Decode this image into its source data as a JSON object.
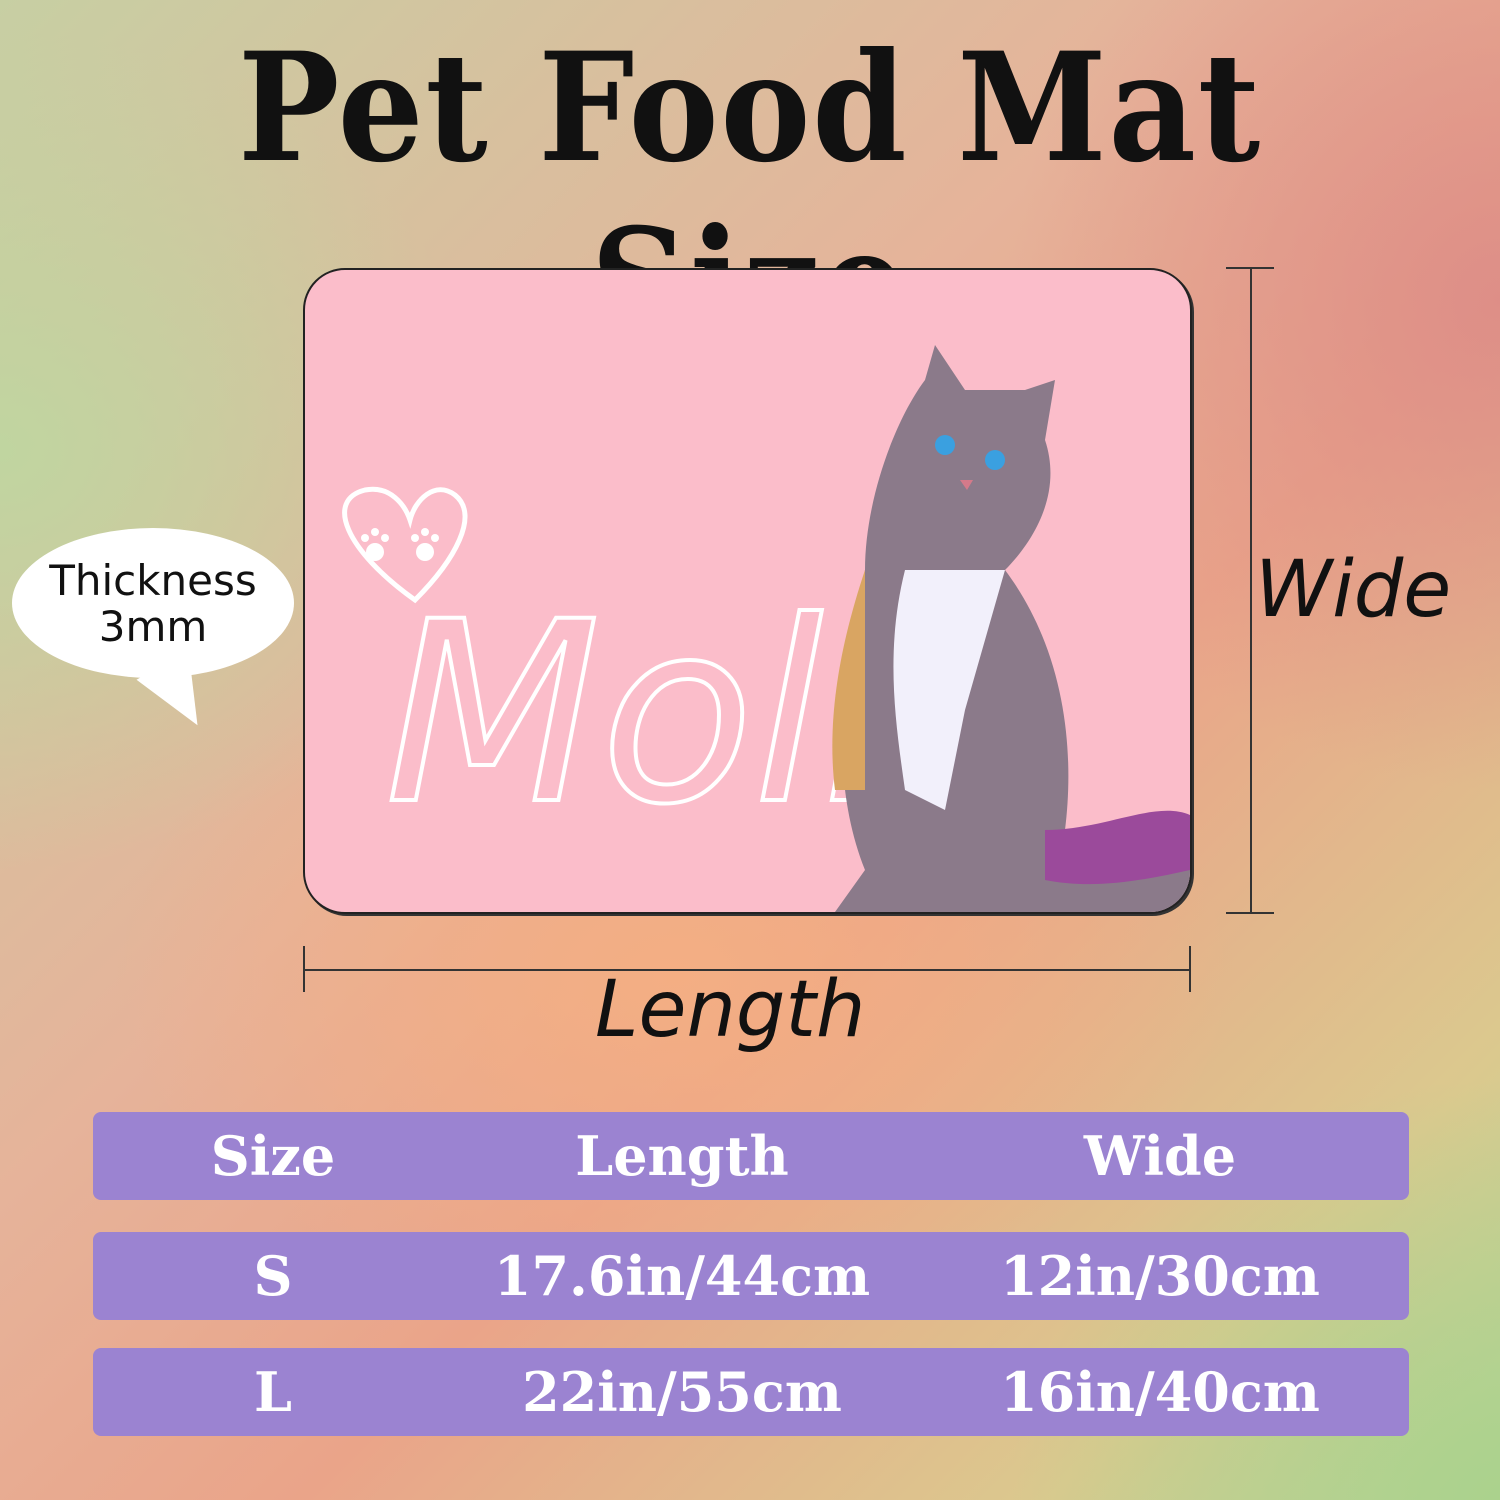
{
  "title": "Pet Food Mat Size",
  "mat": {
    "name": "Molly",
    "background_color": "#fbbdca"
  },
  "thickness_bubble": {
    "line1": "Thickness",
    "line2": "3mm"
  },
  "dimension_labels": {
    "wide": "Wide",
    "length": "Length"
  },
  "table": {
    "color": "#9b83d1",
    "headers": [
      "Size",
      "Length",
      "Wide"
    ],
    "rows": [
      [
        "S",
        "17.6in/44cm",
        "12in/30cm"
      ],
      [
        "L",
        "22in/55cm",
        "16in/40cm"
      ]
    ]
  }
}
